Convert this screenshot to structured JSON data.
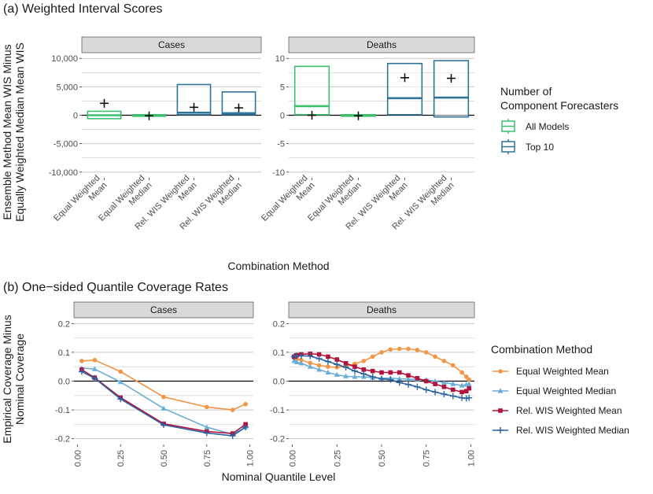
{
  "colors": {
    "all_models": "#3fbf6e",
    "top10": "#2f7397",
    "ew_mean": "#f39545",
    "ew_median": "#6aaed6",
    "rel_mean": "#b3123d",
    "rel_median": "#2b62a0",
    "strip": "#d9d9d9",
    "grid": "#c8c8c8"
  },
  "chart_data": [
    {
      "type": "box",
      "title": "(a) Weighted Interval Scores",
      "xlabel": "Combination Method",
      "ylabel_line1": "Ensemble Method Mean WIS Minus",
      "ylabel_line2": "Equally Weighted Median Mean WIS",
      "categories": [
        "Equal Weighted\nMean",
        "Equal Weighted\nMedian",
        "Rel. WIS Weighted\nMean",
        "Rel. WIS Weighted\nMedian"
      ],
      "legend_title_line1": "Number of",
      "legend_title_line2": "Component Forecasters",
      "legend": [
        "All Models",
        "Top 10"
      ],
      "panels": [
        {
          "label": "Cases",
          "ylim": [
            -11000,
            11000
          ],
          "ticks": [
            -10000,
            -5000,
            0,
            5000,
            10000
          ],
          "tick_labels": [
            "-10,000",
            "-5,000",
            "0",
            "5,000",
            "10,000"
          ],
          "boxes": [
            {
              "cat": 0,
              "group": "All Models",
              "lower": -600,
              "median": 0,
              "upper": 700,
              "mean": 2100
            },
            {
              "cat": 1,
              "group": "All Models",
              "lower": -100,
              "median": 0,
              "upper": 100,
              "mean": -100
            },
            {
              "cat": 2,
              "group": "Top 10",
              "lower": 100,
              "median": 450,
              "upper": 5400,
              "mean": 1400
            },
            {
              "cat": 3,
              "group": "Top 10",
              "lower": 100,
              "median": 350,
              "upper": 4100,
              "mean": 1300
            }
          ]
        },
        {
          "label": "Deaths",
          "ylim": [
            -11,
            11
          ],
          "ticks": [
            -10,
            -5,
            0,
            5,
            10
          ],
          "tick_labels": [
            "-10",
            "-5",
            "0",
            "5",
            "10"
          ],
          "boxes": [
            {
              "cat": 0,
              "group": "All Models",
              "lower": 0.1,
              "median": 1.6,
              "upper": 8.6,
              "mean": 0
            },
            {
              "cat": 1,
              "group": "All Models",
              "lower": -0.1,
              "median": 0,
              "upper": 0.1,
              "mean": -0.1
            },
            {
              "cat": 2,
              "group": "Top 10",
              "lower": 0.1,
              "median": 3.0,
              "upper": 9.1,
              "mean": 6.6
            },
            {
              "cat": 3,
              "group": "Top 10",
              "lower": -0.3,
              "median": 3.1,
              "upper": 9.6,
              "mean": 6.5
            }
          ]
        }
      ]
    },
    {
      "type": "line",
      "title": "(b) One−sided Quantile Coverage Rates",
      "xlabel": "Nominal Quantile Level",
      "ylabel_line1": "Empirical Coverage Minus",
      "ylabel_line2": "Nominal Coverage",
      "xlim": [
        -0.02,
        1.02
      ],
      "xticks": [
        0,
        0.25,
        0.5,
        0.75,
        1
      ],
      "xtick_labels": [
        "0.00",
        "0.25",
        "0.50",
        "0.75",
        "1.00"
      ],
      "ylim": [
        -0.22,
        0.22
      ],
      "yticks": [
        -0.2,
        -0.1,
        0,
        0.1,
        0.2
      ],
      "ytick_labels": [
        "-0.2",
        "-0.1",
        "0.0",
        "0.1",
        "0.2"
      ],
      "legend_title": "Combination Method",
      "panels": [
        {
          "label": "Cases",
          "x": [
            0.025,
            0.1,
            0.25,
            0.5,
            0.75,
            0.9,
            0.975
          ],
          "series": [
            {
              "name": "Equal Weighted Mean",
              "key": "ew_mean",
              "marker": "circle",
              "values": [
                0.07,
                0.073,
                0.033,
                -0.055,
                -0.09,
                -0.1,
                -0.08
              ]
            },
            {
              "name": "Equal Weighted Median",
              "key": "ew_median",
              "marker": "triangle",
              "values": [
                0.045,
                0.042,
                -0.003,
                -0.095,
                -0.16,
                -0.185,
                -0.16
              ]
            },
            {
              "name": "Rel. WIS Weighted Mean",
              "key": "rel_mean",
              "marker": "square",
              "values": [
                0.04,
                0.012,
                -0.057,
                -0.148,
                -0.175,
                -0.182,
                -0.15
              ]
            },
            {
              "name": "Rel. WIS Weighted Median",
              "key": "rel_median",
              "marker": "plus",
              "values": [
                0.033,
                0.01,
                -0.062,
                -0.152,
                -0.18,
                -0.19,
                -0.16
              ]
            }
          ]
        },
        {
          "label": "Deaths",
          "x": [
            0.01,
            0.025,
            0.05,
            0.1,
            0.15,
            0.2,
            0.25,
            0.3,
            0.35,
            0.4,
            0.45,
            0.5,
            0.55,
            0.6,
            0.65,
            0.7,
            0.75,
            0.8,
            0.85,
            0.9,
            0.95,
            0.975,
            0.99
          ],
          "series": [
            {
              "name": "Equal Weighted Mean",
              "key": "ew_mean",
              "marker": "circle",
              "values": [
                0.08,
                0.077,
                0.073,
                0.063,
                0.055,
                0.05,
                0.048,
                0.052,
                0.06,
                0.07,
                0.085,
                0.1,
                0.11,
                0.112,
                0.112,
                0.108,
                0.1,
                0.085,
                0.07,
                0.055,
                0.03,
                0.015,
                0.005
              ]
            },
            {
              "name": "Equal Weighted Median",
              "key": "ew_median",
              "marker": "triangle",
              "values": [
                0.07,
                0.066,
                0.062,
                0.05,
                0.04,
                0.03,
                0.022,
                0.017,
                0.015,
                0.015,
                0.012,
                0.01,
                0.01,
                0.008,
                0.007,
                0.006,
                0.004,
                0.0,
                -0.005,
                -0.01,
                -0.015,
                -0.012,
                -0.01
              ]
            },
            {
              "name": "Rel. WIS Weighted Mean",
              "key": "rel_mean",
              "marker": "square",
              "values": [
                0.085,
                0.09,
                0.093,
                0.095,
                0.093,
                0.085,
                0.075,
                0.062,
                0.05,
                0.04,
                0.035,
                0.03,
                0.03,
                0.03,
                0.02,
                0.01,
                0.0,
                -0.01,
                -0.02,
                -0.03,
                -0.038,
                -0.035,
                -0.025
              ]
            },
            {
              "name": "Rel. WIS Weighted Median",
              "key": "rel_median",
              "marker": "plus",
              "values": [
                0.085,
                0.088,
                0.088,
                0.087,
                0.078,
                0.068,
                0.058,
                0.048,
                0.035,
                0.025,
                0.015,
                0.008,
                0.005,
                -0.005,
                -0.012,
                -0.02,
                -0.03,
                -0.038,
                -0.045,
                -0.052,
                -0.058,
                -0.06,
                -0.058
              ]
            }
          ]
        }
      ]
    }
  ]
}
